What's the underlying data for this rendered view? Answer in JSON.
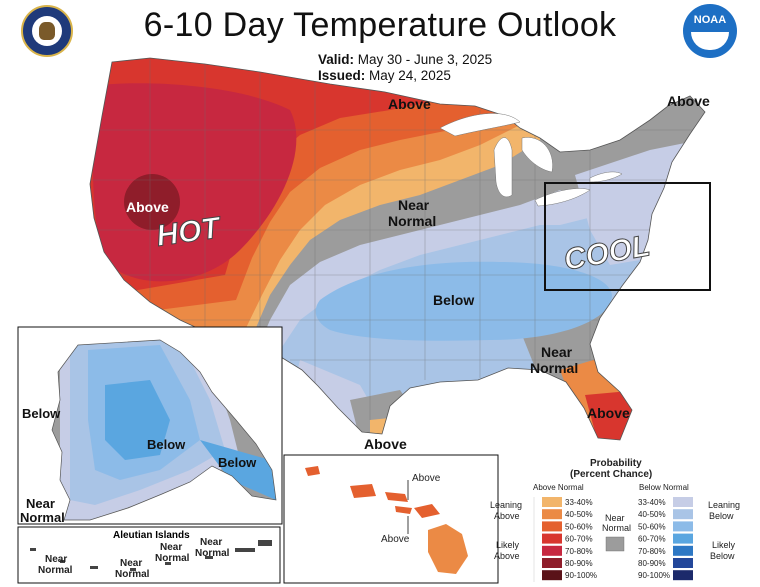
{
  "header": {
    "title": "6-10 Day Temperature Outlook",
    "valid_label": "Valid:",
    "valid_value": "May 30 - June 3, 2025",
    "issued_label": "Issued:",
    "issued_value": "May 24, 2025",
    "noaa_text": "NOAA"
  },
  "map": {
    "labels": {
      "above_north": "Above",
      "above_ne": "Above",
      "above_west": "Above",
      "hot": "HOT",
      "near_normal_center_1": "Near",
      "near_normal_center_2": "Normal",
      "below_center": "Below",
      "cool": "COOL",
      "near_normal_se_1": "Near",
      "near_normal_se_2": "Normal",
      "above_florida": "Above",
      "above_texas": "Above"
    },
    "alaska": {
      "below_west": "Below",
      "below_center": "Below",
      "below_se": "Below",
      "near_normal_1": "Near",
      "near_normal_2": "Normal",
      "aleutian_title": "Aleutian Islands",
      "aleutian_near_1": "Near",
      "aleutian_near_2": "Normal",
      "aleutian_near_3": "Near",
      "aleutian_near_4": "Normal",
      "aleutian_near_5": "Near",
      "aleutian_near_6": "Normal",
      "aleutian_near_7": "Near",
      "aleutian_near_8": "Normal"
    },
    "hawaii": {
      "above_1": "Above",
      "above_2": "Above"
    }
  },
  "legend": {
    "title_1": "Probability",
    "title_2": "(Percent Chance)",
    "above_header": "Above Normal",
    "below_header": "Below Normal",
    "leaning_above_1": "Leaning",
    "leaning_above_2": "Above",
    "likely_above_1": "Likely",
    "likely_above_2": "Above",
    "near_1": "Near",
    "near_2": "Normal",
    "leaning_below_1": "Leaning",
    "leaning_below_2": "Below",
    "likely_below_1": "Likely",
    "likely_below_2": "Below",
    "ranges": [
      "33-40%",
      "40-50%",
      "50-60%",
      "60-70%",
      "70-80%",
      "80-90%",
      "90-100%"
    ],
    "above_colors": [
      "#f2b56b",
      "#eb8a45",
      "#e4602f",
      "#d8362e",
      "#c72840",
      "#8f1d2a",
      "#5a1218"
    ],
    "below_colors": [
      "#c6cde6",
      "#a9c4e6",
      "#8cbbe8",
      "#5aa6e0",
      "#2e78c4",
      "#23479a",
      "#1c2a6b"
    ],
    "near_color": "#9c9c9c"
  }
}
